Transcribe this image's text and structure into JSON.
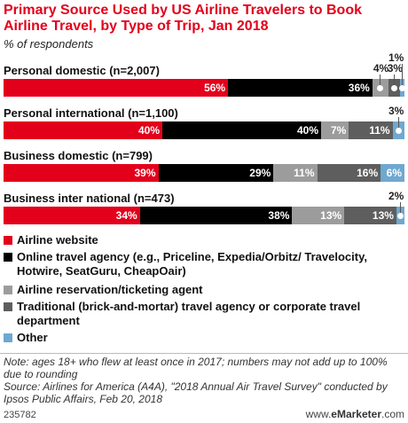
{
  "title": "Primary Source Used by US Airline Travelers to Book Airline Travel, by Type of Trip, Jan 2018",
  "subtitle": "% of respondents",
  "colors": {
    "airline_website": "#e3001b",
    "online_travel_agency": "#000000",
    "airline_reservation": "#9c9c9c",
    "traditional": "#5e5e5e",
    "other": "#6fa8d0"
  },
  "chart_data": {
    "type": "bar",
    "orientation": "horizontal-stacked",
    "unit": "% of respondents",
    "categories": [
      "Personal domestic (n=2,007)",
      "Personal international (n=1,100)",
      "Business domestic (n=799)",
      "Business inter national (n=473)"
    ],
    "series": [
      {
        "name": "Airline website",
        "values": [
          56,
          40,
          39,
          34
        ]
      },
      {
        "name": "Online travel agency (e.g., Priceline, Expedia/Orbitz/ Travelocity, Hotwire, SeatGuru, CheapOair)",
        "values": [
          36,
          40,
          29,
          38
        ]
      },
      {
        "name": "Airline reservation/ticketing  agent",
        "values": [
          4,
          7,
          11,
          13
        ]
      },
      {
        "name": "Traditional (brick-and-mortar) travel agency or corporate travel department",
        "values": [
          3,
          11,
          16,
          13
        ]
      },
      {
        "name": "Other",
        "values": [
          1,
          3,
          6,
          2
        ]
      }
    ],
    "labels": [
      [
        "56%",
        "36%",
        "4%",
        "3%",
        "1%"
      ],
      [
        "40%",
        "40%",
        "7%",
        "11%",
        "3%"
      ],
      [
        "39%",
        "29%",
        "11%",
        "16%",
        "6%"
      ],
      [
        "34%",
        "38%",
        "13%",
        "13%",
        "2%"
      ]
    ],
    "legend_position": "bottom"
  },
  "note": "Note: ages 18+ who flew at least once in 2017; numbers may not add up to 100% due to rounding",
  "source": "Source: Airlines for America (A4A), \"2018 Annual Air Travel Survey\" conducted by Ipsos Public Affairs, Feb 20, 2018",
  "chart_id": "235782",
  "brand": {
    "prefix": "www.",
    "name": "eMarketer",
    "suffix": ".com"
  }
}
